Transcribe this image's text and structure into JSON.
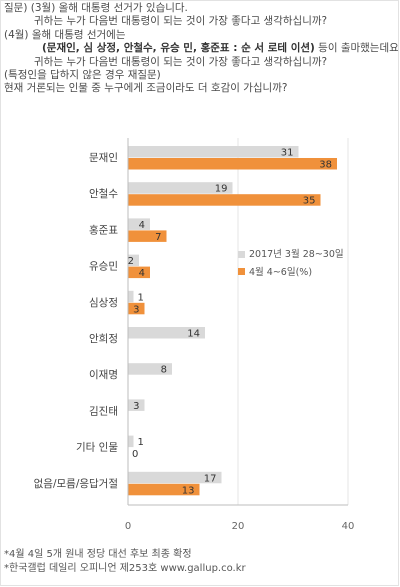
{
  "question": {
    "line1": "질문) (3월) 올해 대통령 선거가 있습니다.",
    "line2": "귀하는 누가 다음번 대통령이 되는 것이 가장 좋다고 생각하십니까?",
    "line3": "(4월) 올해 대통령 선거에는",
    "line4_bold": "(문재인, 심 상정, 안철수, 유승 민, 홍준표 : 순 서 로테 이션)",
    "line4_suffix": " 등이 출마했는데요.",
    "line5": "귀하는 누가 다음번 대통령이 되는 것이 가장 좋다고 생각하십니까?",
    "line6": "(특정인을 답하지 않은 경우 재질문)",
    "line7": "현재 거론되는 인물 중 누구에게 조금이라도 더 호감이 가십니까?"
  },
  "chart_data": {
    "type": "bar",
    "orientation": "horizontal",
    "categories": [
      "문재인",
      "안철수",
      "홍준표",
      "유승민",
      "심상정",
      "안희정",
      "이재명",
      "김진태",
      "기타 인물",
      "없음/모름/응답거절"
    ],
    "series": [
      {
        "name": "2017년 3월 28~30일",
        "color": "#d9d9d9",
        "values": [
          31,
          19,
          4,
          2,
          1,
          14,
          8,
          3,
          1,
          17
        ]
      },
      {
        "name": "4월 4~6일(%)",
        "color": "#f0913b",
        "values": [
          38,
          35,
          7,
          4,
          3,
          null,
          null,
          null,
          0,
          13
        ]
      }
    ],
    "xlim": [
      0,
      40
    ],
    "xticks": [
      "0",
      "20",
      "40"
    ],
    "grid": true,
    "legend": "right-middle"
  },
  "notes": [
    "*4월 4일 5개 원내 정당 대선 후보 최종 확정",
    "*한국갤럽 데일리 오피니언 제253호 www.gallup.co.kr"
  ]
}
